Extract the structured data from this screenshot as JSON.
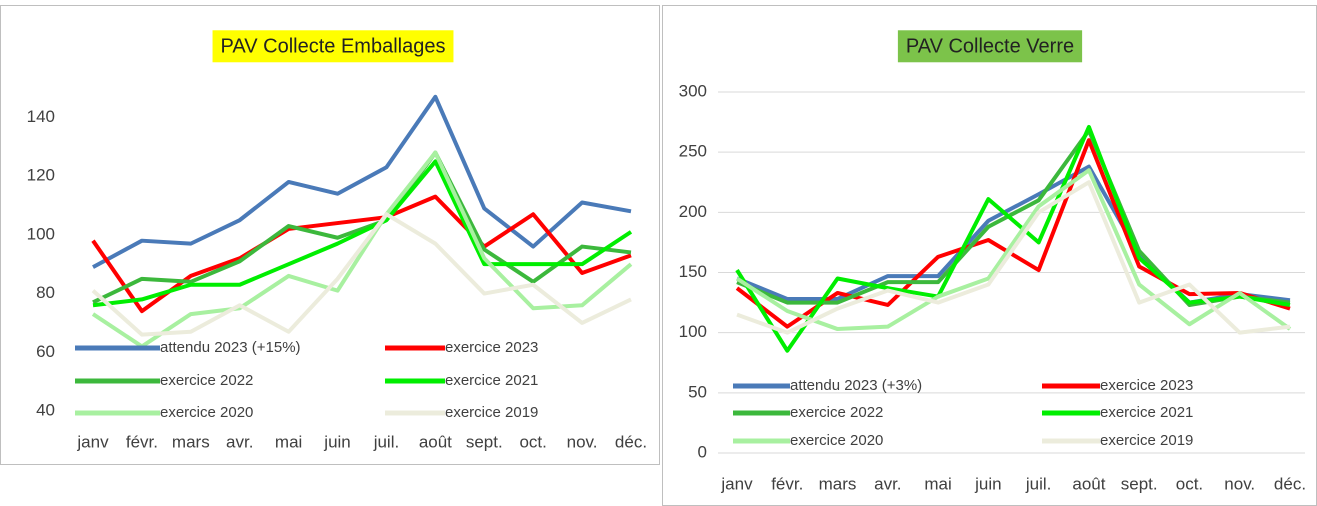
{
  "chart_data": [
    {
      "type": "line",
      "title": "PAV Collecte Emballages",
      "title_background": "#ffff00",
      "categories": [
        "janv",
        "févr.",
        "mars",
        "avr.",
        "mai",
        "juin",
        "juil.",
        "août",
        "sept.",
        "oct.",
        "nov.",
        "déc."
      ],
      "ylim": [
        40,
        150
      ],
      "yticks": [
        40,
        60,
        80,
        100,
        120,
        140
      ],
      "grid": false,
      "series": [
        {
          "name": "attendu 2023 (+15%)",
          "color": "#4a7ab8",
          "values": [
            89,
            98,
            97,
            105,
            118,
            114,
            123,
            147,
            109,
            96,
            111,
            108
          ]
        },
        {
          "name": "exercice 2023",
          "color": "#ff0000",
          "values": [
            98,
            74,
            86,
            92,
            102,
            104,
            106,
            113,
            96,
            107,
            87,
            93
          ]
        },
        {
          "name": "exercice 2022",
          "color": "#3cb83c",
          "values": [
            77,
            85,
            84,
            91,
            103,
            99,
            105,
            128,
            95,
            84,
            96,
            94
          ]
        },
        {
          "name": "exercice 2021",
          "color": "#00ee00",
          "values": [
            76,
            78,
            83,
            83,
            90,
            97,
            105,
            125,
            90,
            90,
            90,
            101
          ]
        },
        {
          "name": "exercice 2020",
          "color": "#a8f0a0",
          "values": [
            73,
            62,
            73,
            75,
            86,
            81,
            107,
            128,
            92,
            75,
            76,
            90
          ]
        },
        {
          "name": "exercice 2019",
          "color": "#ececdc",
          "values": [
            81,
            66,
            67,
            76,
            67,
            85,
            107,
            97,
            80,
            83,
            70,
            78
          ]
        }
      ]
    },
    {
      "type": "line",
      "title": "PAV Collecte Verre",
      "title_background": "#7cc34a",
      "categories": [
        "janv",
        "févr.",
        "mars",
        "avr.",
        "mai",
        "juin",
        "juil.",
        "août",
        "sept.",
        "oct.",
        "nov.",
        "déc."
      ],
      "ylim": [
        0,
        300
      ],
      "yticks": [
        0,
        50,
        100,
        150,
        200,
        250,
        300
      ],
      "grid": true,
      "series": [
        {
          "name": "attendu 2023 (+3%)",
          "color": "#4a7ab8",
          "values": [
            145,
            128,
            128,
            147,
            147,
            193,
            215,
            238,
            165,
            125,
            132,
            127
          ]
        },
        {
          "name": "exercice 2023",
          "color": "#ff0000",
          "values": [
            137,
            105,
            133,
            123,
            163,
            177,
            152,
            260,
            155,
            132,
            133,
            120
          ]
        },
        {
          "name": "exercice 2022",
          "color": "#3cb83c",
          "values": [
            142,
            125,
            125,
            142,
            142,
            188,
            210,
            268,
            168,
            123,
            130,
            125
          ]
        },
        {
          "name": "exercice 2021",
          "color": "#00ee00",
          "values": [
            152,
            85,
            145,
            137,
            130,
            211,
            175,
            271,
            162,
            125,
            130,
            123
          ]
        },
        {
          "name": "exercice 2020",
          "color": "#a8f0a0",
          "values": [
            145,
            118,
            103,
            105,
            130,
            145,
            205,
            235,
            140,
            107,
            133,
            103
          ]
        },
        {
          "name": "exercice 2019",
          "color": "#ececdc",
          "values": [
            115,
            100,
            120,
            135,
            125,
            140,
            200,
            225,
            125,
            140,
            100,
            105
          ]
        }
      ]
    }
  ]
}
